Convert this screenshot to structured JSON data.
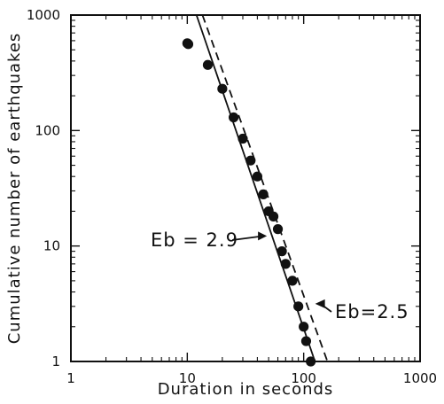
{
  "chart_data": {
    "type": "scatter",
    "title": "",
    "xlabel": "Duration  in  seconds",
    "ylabel": "Cumulative  number  of  earthquakes",
    "xscale": "log",
    "yscale": "log",
    "xlim": [
      1,
      1000
    ],
    "ylim": [
      1,
      1000
    ],
    "x_ticks": [
      1,
      10,
      100,
      1000
    ],
    "y_ticks": [
      1,
      10,
      100,
      1000
    ],
    "x_tick_labels": [
      "1",
      "10",
      "100",
      "1000"
    ],
    "y_tick_labels": [
      "1",
      "10",
      "100",
      "1000"
    ],
    "grid": false,
    "legend": "none",
    "series": [
      {
        "type": "scatter",
        "values": [
          [
            10,
            570
          ],
          [
            10.2,
            560
          ],
          [
            15,
            370
          ],
          [
            20,
            230
          ],
          [
            25,
            130
          ],
          [
            30,
            85
          ],
          [
            35,
            55
          ],
          [
            40,
            40
          ],
          [
            45,
            28
          ],
          [
            50,
            20
          ],
          [
            55,
            18
          ],
          [
            60,
            14
          ],
          [
            65,
            9
          ],
          [
            70,
            7
          ],
          [
            80,
            5
          ],
          [
            90,
            3
          ],
          [
            100,
            2
          ],
          [
            105,
            1.5
          ],
          [
            115,
            1
          ]
        ]
      },
      {
        "type": "line",
        "style": "solid",
        "values": [
          [
            12,
            1000
          ],
          [
            125,
            1
          ]
        ]
      },
      {
        "type": "line",
        "style": "dashed",
        "values": [
          [
            13.5,
            1000
          ],
          [
            160,
            1
          ]
        ]
      }
    ],
    "annotations": [
      {
        "text": "Eb = 2.9",
        "target": [
          50,
          12
        ]
      },
      {
        "text": "Eb=2.5",
        "target": [
          130,
          3
        ]
      }
    ]
  }
}
